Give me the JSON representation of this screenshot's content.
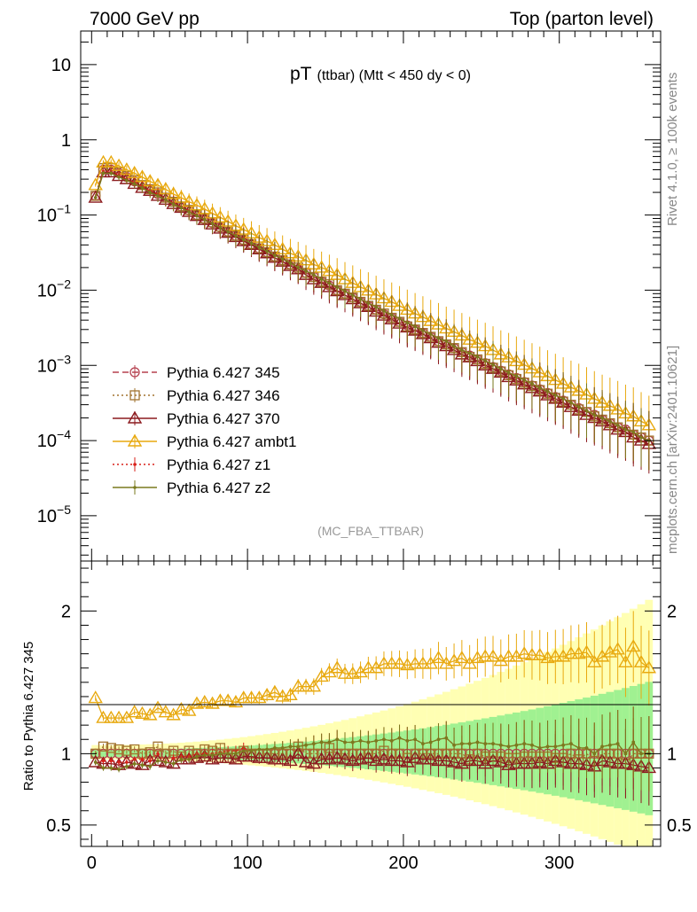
{
  "header": {
    "left": "7000 GeV pp",
    "right": "Top (parton level)"
  },
  "side": {
    "rivet": "Rivet 4.1.0, ≥ 100k events",
    "mcplots": "mcplots.cern.ch [arXiv:2401.10621]"
  },
  "chart_data": {
    "type": "line",
    "title": "pT",
    "title_sub": "(ttbar) (Mtt < 450 dy < 0)",
    "watermark": "(MC_FBA_TTBAR)",
    "xlabel": "",
    "ylabel_main": "",
    "ylabel_ratio": "Ratio to Pythia 6.427 345",
    "xlim": [
      -7,
      365
    ],
    "ylim_main": [
      2.5e-06,
      28
    ],
    "ylim_ratio": [
      0.35,
      2.35
    ],
    "yscale_main": "log",
    "x_ticks": [
      "0",
      "100",
      "200",
      "300"
    ],
    "y_ticks_main": [
      "10",
      "1",
      "10^-1",
      "10^-2",
      "10^-3",
      "10^-4",
      "10^-5"
    ],
    "y_ticks_ratio": [
      "2",
      "1",
      "0.5"
    ],
    "legend": [
      {
        "label": "Pythia 6.427 345",
        "color": "#b5404f",
        "marker": "circle",
        "dash": "dashed"
      },
      {
        "label": "Pythia 6.427 346",
        "color": "#a2742f",
        "marker": "square",
        "dash": "dotted"
      },
      {
        "label": "Pythia 6.427 370",
        "color": "#8c1a1f",
        "marker": "triangle",
        "dash": "solid"
      },
      {
        "label": "Pythia 6.427 ambt1",
        "color": "#e8a90f",
        "marker": "triangle",
        "dash": "solid"
      },
      {
        "label": "Pythia 6.427 z1",
        "color": "#d9201a",
        "marker": "dot",
        "dash": "dotted"
      },
      {
        "label": "Pythia 6.427 z2",
        "color": "#7a7a1e",
        "marker": "dot",
        "dash": "solid"
      }
    ],
    "x": [
      2.5,
      7.5,
      12.5,
      17.5,
      22.5,
      27.5,
      32.5,
      37.5,
      42.5,
      47.5,
      52.5,
      57.5,
      62.5,
      67.5,
      72.5,
      77.5,
      82.5,
      87.5,
      92.5,
      97.5,
      102.5,
      107.5,
      112.5,
      117.5,
      122.5,
      127.5,
      132.5,
      137.5,
      142.5,
      147.5,
      152.5,
      157.5,
      162.5,
      167.5,
      172.5,
      177.5,
      182.5,
      187.5,
      192.5,
      197.5,
      202.5,
      207.5,
      212.5,
      217.5,
      222.5,
      227.5,
      232.5,
      237.5,
      242.5,
      247.5,
      252.5,
      257.5,
      262.5,
      267.5,
      272.5,
      277.5,
      282.5,
      287.5,
      292.5,
      297.5,
      302.5,
      307.5,
      312.5,
      317.5,
      322.5,
      327.5,
      332.5,
      337.5,
      342.5,
      347.5,
      352.5,
      357.5
    ],
    "series": [
      {
        "name": "Pythia 6.427 345",
        "values": [
          0.18,
          0.4,
          0.4,
          0.36,
          0.32,
          0.28,
          0.25,
          0.22,
          0.19,
          0.17,
          0.15,
          0.13,
          0.115,
          0.1,
          0.088,
          0.078,
          0.068,
          0.06,
          0.053,
          0.046,
          0.041,
          0.036,
          0.032,
          0.028,
          0.025,
          0.022,
          0.019,
          0.017,
          0.015,
          0.013,
          0.0115,
          0.01,
          0.009,
          0.008,
          0.007,
          0.0062,
          0.0055,
          0.0048,
          0.0043,
          0.0038,
          0.0034,
          0.003,
          0.0027,
          0.0024,
          0.0021,
          0.0019,
          0.0017,
          0.0015,
          0.00135,
          0.0012,
          0.00107,
          0.00095,
          0.00085,
          0.00076,
          0.00068,
          0.0006,
          0.00054,
          0.00048,
          0.00043,
          0.00038,
          0.00034,
          0.0003,
          0.00027,
          0.00024,
          0.00022,
          0.00019,
          0.00017,
          0.00015,
          0.00014,
          0.00012,
          0.00011,
          0.0001
        ]
      },
      {
        "name": "Pythia 6.427 346",
        "values": [
          0.18,
          0.42,
          0.42,
          0.37,
          0.33,
          0.29,
          0.25,
          0.22,
          0.2,
          0.17,
          0.15,
          0.13,
          0.117,
          0.1,
          0.09,
          0.08,
          0.07,
          0.06,
          0.053,
          0.047,
          0.041,
          0.036,
          0.032,
          0.028,
          0.025,
          0.022,
          0.02,
          0.017,
          0.015,
          0.013,
          0.012,
          0.01,
          0.009,
          0.008,
          0.007,
          0.0062,
          0.0055,
          0.0049,
          0.0043,
          0.0038,
          0.0033,
          0.003,
          0.0027,
          0.0024,
          0.0021,
          0.0019,
          0.0017,
          0.0015,
          0.0013,
          0.0012,
          0.00105,
          0.00093,
          0.00083,
          0.00074,
          0.00066,
          0.00059,
          0.00053,
          0.00047,
          0.00042,
          0.00037,
          0.00033,
          0.0003,
          0.00026,
          0.00024,
          0.00021,
          0.00019,
          0.00017,
          0.00015,
          0.00013,
          0.00012,
          0.00011,
          0.0001
        ]
      },
      {
        "name": "Pythia 6.427 370",
        "values": [
          0.17,
          0.37,
          0.37,
          0.33,
          0.3,
          0.26,
          0.23,
          0.21,
          0.18,
          0.16,
          0.14,
          0.125,
          0.11,
          0.097,
          0.086,
          0.075,
          0.066,
          0.058,
          0.051,
          0.045,
          0.04,
          0.035,
          0.031,
          0.027,
          0.024,
          0.021,
          0.019,
          0.016,
          0.014,
          0.0125,
          0.011,
          0.0097,
          0.0086,
          0.0076,
          0.0067,
          0.006,
          0.0052,
          0.0046,
          0.0041,
          0.0036,
          0.0032,
          0.0029,
          0.0026,
          0.0023,
          0.002,
          0.0018,
          0.0016,
          0.0014,
          0.00128,
          0.00114,
          0.001,
          0.0009,
          0.0008,
          0.0007,
          0.00063,
          0.00056,
          0.0005,
          0.00045,
          0.0004,
          0.00036,
          0.00032,
          0.00028,
          0.00025,
          0.00022,
          0.0002,
          0.00018,
          0.00016,
          0.00014,
          0.00013,
          0.00011,
          0.0001,
          9e-05
        ]
      },
      {
        "name": "Pythia 6.427 ambt1",
        "values": [
          0.25,
          0.5,
          0.5,
          0.45,
          0.4,
          0.36,
          0.32,
          0.28,
          0.25,
          0.22,
          0.19,
          0.17,
          0.15,
          0.135,
          0.12,
          0.105,
          0.093,
          0.082,
          0.072,
          0.064,
          0.057,
          0.05,
          0.045,
          0.04,
          0.035,
          0.031,
          0.028,
          0.025,
          0.022,
          0.02,
          0.018,
          0.016,
          0.014,
          0.0125,
          0.011,
          0.0099,
          0.0088,
          0.0078,
          0.007,
          0.0062,
          0.0055,
          0.0049,
          0.0044,
          0.0039,
          0.0035,
          0.0031,
          0.0028,
          0.0025,
          0.0022,
          0.002,
          0.0018,
          0.0016,
          0.0014,
          0.00128,
          0.00114,
          0.00102,
          0.00091,
          0.00081,
          0.00072,
          0.00064,
          0.00057,
          0.00051,
          0.00046,
          0.00041,
          0.00036,
          0.00032,
          0.00029,
          0.00026,
          0.00023,
          0.00021,
          0.00018,
          0.00016
        ]
      },
      {
        "name": "Pythia 6.427 z1",
        "values": [
          0.17,
          0.38,
          0.38,
          0.34,
          0.3,
          0.27,
          0.24,
          0.21,
          0.19,
          0.16,
          0.145,
          0.128,
          0.113,
          0.1,
          0.088,
          0.078,
          0.069,
          0.061,
          0.054,
          0.048,
          0.042,
          0.037,
          0.033,
          0.029,
          0.026,
          0.023,
          0.02,
          0.018,
          0.016,
          0.014,
          0.0124,
          0.011,
          0.0097,
          0.0086,
          0.0076,
          0.0067,
          0.006,
          0.0053,
          0.0047,
          0.0042,
          0.0037,
          0.0033,
          0.0029,
          0.0026,
          0.0023,
          0.0021,
          0.0018,
          0.0016,
          0.00145,
          0.0013,
          0.00115,
          0.00102,
          0.0009,
          0.0008,
          0.00072,
          0.00064,
          0.00057,
          0.0005,
          0.00045,
          0.0004,
          0.00036,
          0.00032,
          0.00028,
          0.00025,
          0.00022,
          0.0002,
          0.00018,
          0.00016,
          0.00014,
          0.00013,
          0.00011,
          0.0001
        ]
      },
      {
        "name": "Pythia 6.427 z2",
        "values": [
          0.17,
          0.36,
          0.36,
          0.32,
          0.29,
          0.26,
          0.23,
          0.2,
          0.18,
          0.16,
          0.14,
          0.125,
          0.11,
          0.098,
          0.087,
          0.077,
          0.068,
          0.06,
          0.053,
          0.047,
          0.042,
          0.037,
          0.033,
          0.029,
          0.026,
          0.023,
          0.02,
          0.018,
          0.016,
          0.014,
          0.0124,
          0.011,
          0.0097,
          0.0086,
          0.0076,
          0.0067,
          0.006,
          0.0053,
          0.0047,
          0.0042,
          0.0037,
          0.0033,
          0.0029,
          0.0026,
          0.0023,
          0.0021,
          0.0018,
          0.0016,
          0.00145,
          0.0013,
          0.00115,
          0.00102,
          0.0009,
          0.0008,
          0.00072,
          0.00064,
          0.00057,
          0.0005,
          0.00045,
          0.0004,
          0.00036,
          0.00032,
          0.00028,
          0.00025,
          0.00022,
          0.0002,
          0.00018,
          0.00016,
          0.00014,
          0.00013,
          0.00011,
          0.0001
        ]
      }
    ],
    "ratio_series": [
      {
        "name": "Pythia 6.427 346",
        "values": [
          1.0,
          1.05,
          1.04,
          1.03,
          1.02,
          1.03,
          1.0,
          1.01,
          1.05,
          1.0,
          1.02,
          0.98,
          1.02,
          1.0,
          1.03,
          1.02,
          1.04,
          1.0,
          1.0,
          1.02,
          1.0,
          1.0,
          1.0,
          1.0,
          1.0,
          1.0,
          1.05,
          1.0,
          1.0,
          1.0,
          1.04,
          1.0,
          1.0,
          1.0,
          1.0,
          1.0,
          1.0,
          1.02,
          1.0,
          1.0,
          0.97,
          1.0,
          1.0,
          1.0,
          1.0,
          1.0,
          1.0,
          1.0,
          0.96,
          1.0,
          0.98,
          0.98,
          0.98,
          0.97,
          0.97,
          0.98,
          0.98,
          0.98,
          0.98,
          0.97,
          0.97,
          1.0,
          0.96,
          1.0,
          0.95,
          1.0,
          1.0,
          1.0,
          0.93,
          1.0,
          1.0,
          1.0
        ]
      },
      {
        "name": "Pythia 6.427 370",
        "values": [
          0.94,
          0.93,
          0.93,
          0.92,
          0.94,
          0.93,
          0.92,
          0.95,
          0.95,
          0.94,
          0.93,
          0.96,
          0.96,
          0.97,
          0.98,
          0.96,
          0.97,
          0.97,
          0.96,
          0.98,
          0.98,
          0.97,
          0.97,
          0.96,
          0.96,
          0.95,
          1.0,
          0.94,
          0.93,
          0.96,
          0.96,
          0.97,
          0.96,
          0.95,
          0.96,
          0.97,
          0.95,
          0.96,
          0.95,
          0.95,
          0.94,
          0.97,
          0.96,
          0.96,
          0.95,
          0.95,
          0.94,
          0.93,
          0.95,
          0.95,
          0.93,
          0.95,
          0.94,
          0.92,
          0.93,
          0.93,
          0.93,
          0.94,
          0.93,
          0.95,
          0.94,
          0.93,
          0.93,
          0.92,
          0.91,
          0.95,
          0.94,
          0.93,
          0.93,
          0.92,
          0.91,
          0.9
        ]
      },
      {
        "name": "Pythia 6.427 ambt1",
        "values": [
          1.39,
          1.25,
          1.25,
          1.25,
          1.25,
          1.29,
          1.28,
          1.27,
          1.32,
          1.29,
          1.27,
          1.31,
          1.3,
          1.35,
          1.36,
          1.35,
          1.37,
          1.37,
          1.36,
          1.39,
          1.39,
          1.39,
          1.41,
          1.43,
          1.4,
          1.41,
          1.47,
          1.47,
          1.47,
          1.54,
          1.57,
          1.6,
          1.56,
          1.56,
          1.57,
          1.6,
          1.6,
          1.63,
          1.63,
          1.63,
          1.62,
          1.63,
          1.63,
          1.63,
          1.67,
          1.63,
          1.65,
          1.67,
          1.63,
          1.67,
          1.68,
          1.68,
          1.65,
          1.68,
          1.68,
          1.7,
          1.69,
          1.69,
          1.67,
          1.68,
          1.68,
          1.7,
          1.7,
          1.71,
          1.64,
          1.68,
          1.71,
          1.73,
          1.64,
          1.75,
          1.64,
          1.6
        ]
      },
      {
        "name": "Pythia 6.427 z1",
        "values": [
          0.94,
          0.95,
          0.95,
          0.94,
          0.94,
          0.96,
          0.96,
          0.95,
          1.0,
          0.94,
          0.97,
          0.98,
          0.98,
          1.0,
          1.0,
          1.0,
          1.01,
          1.02,
          1.02,
          1.04,
          1.02,
          1.03,
          1.03,
          1.04,
          1.04,
          1.05,
          1.05,
          1.06,
          1.07,
          1.08,
          1.08,
          1.1,
          1.08,
          1.08,
          1.09,
          1.08,
          1.09,
          1.1,
          1.09,
          1.11,
          1.09,
          1.1,
          1.07,
          1.08,
          1.1,
          1.11,
          1.06,
          1.07,
          1.07,
          1.08,
          1.07,
          1.07,
          1.06,
          1.05,
          1.06,
          1.07,
          1.06,
          1.04,
          1.05,
          1.05,
          1.06,
          1.07,
          1.04,
          1.04,
          1.0,
          1.05,
          1.06,
          1.07,
          1.0,
          1.08,
          1.0,
          1.0
        ]
      },
      {
        "name": "Pythia 6.427 z2",
        "values": [
          0.94,
          0.9,
          0.9,
          0.89,
          0.91,
          0.93,
          0.92,
          0.91,
          0.95,
          0.94,
          0.93,
          0.96,
          0.96,
          0.98,
          0.99,
          0.99,
          1.0,
          1.0,
          1.0,
          1.02,
          1.02,
          1.03,
          1.03,
          1.04,
          1.04,
          1.05,
          1.05,
          1.06,
          1.07,
          1.08,
          1.08,
          1.1,
          1.08,
          1.08,
          1.09,
          1.08,
          1.09,
          1.1,
          1.09,
          1.11,
          1.09,
          1.1,
          1.07,
          1.08,
          1.1,
          1.11,
          1.06,
          1.07,
          1.07,
          1.08,
          1.07,
          1.07,
          1.06,
          1.05,
          1.06,
          1.07,
          1.06,
          1.04,
          1.05,
          1.05,
          1.06,
          1.07,
          1.04,
          1.04,
          1.0,
          1.05,
          1.06,
          1.07,
          1.0,
          1.08,
          1.0,
          1.0
        ]
      }
    ]
  }
}
